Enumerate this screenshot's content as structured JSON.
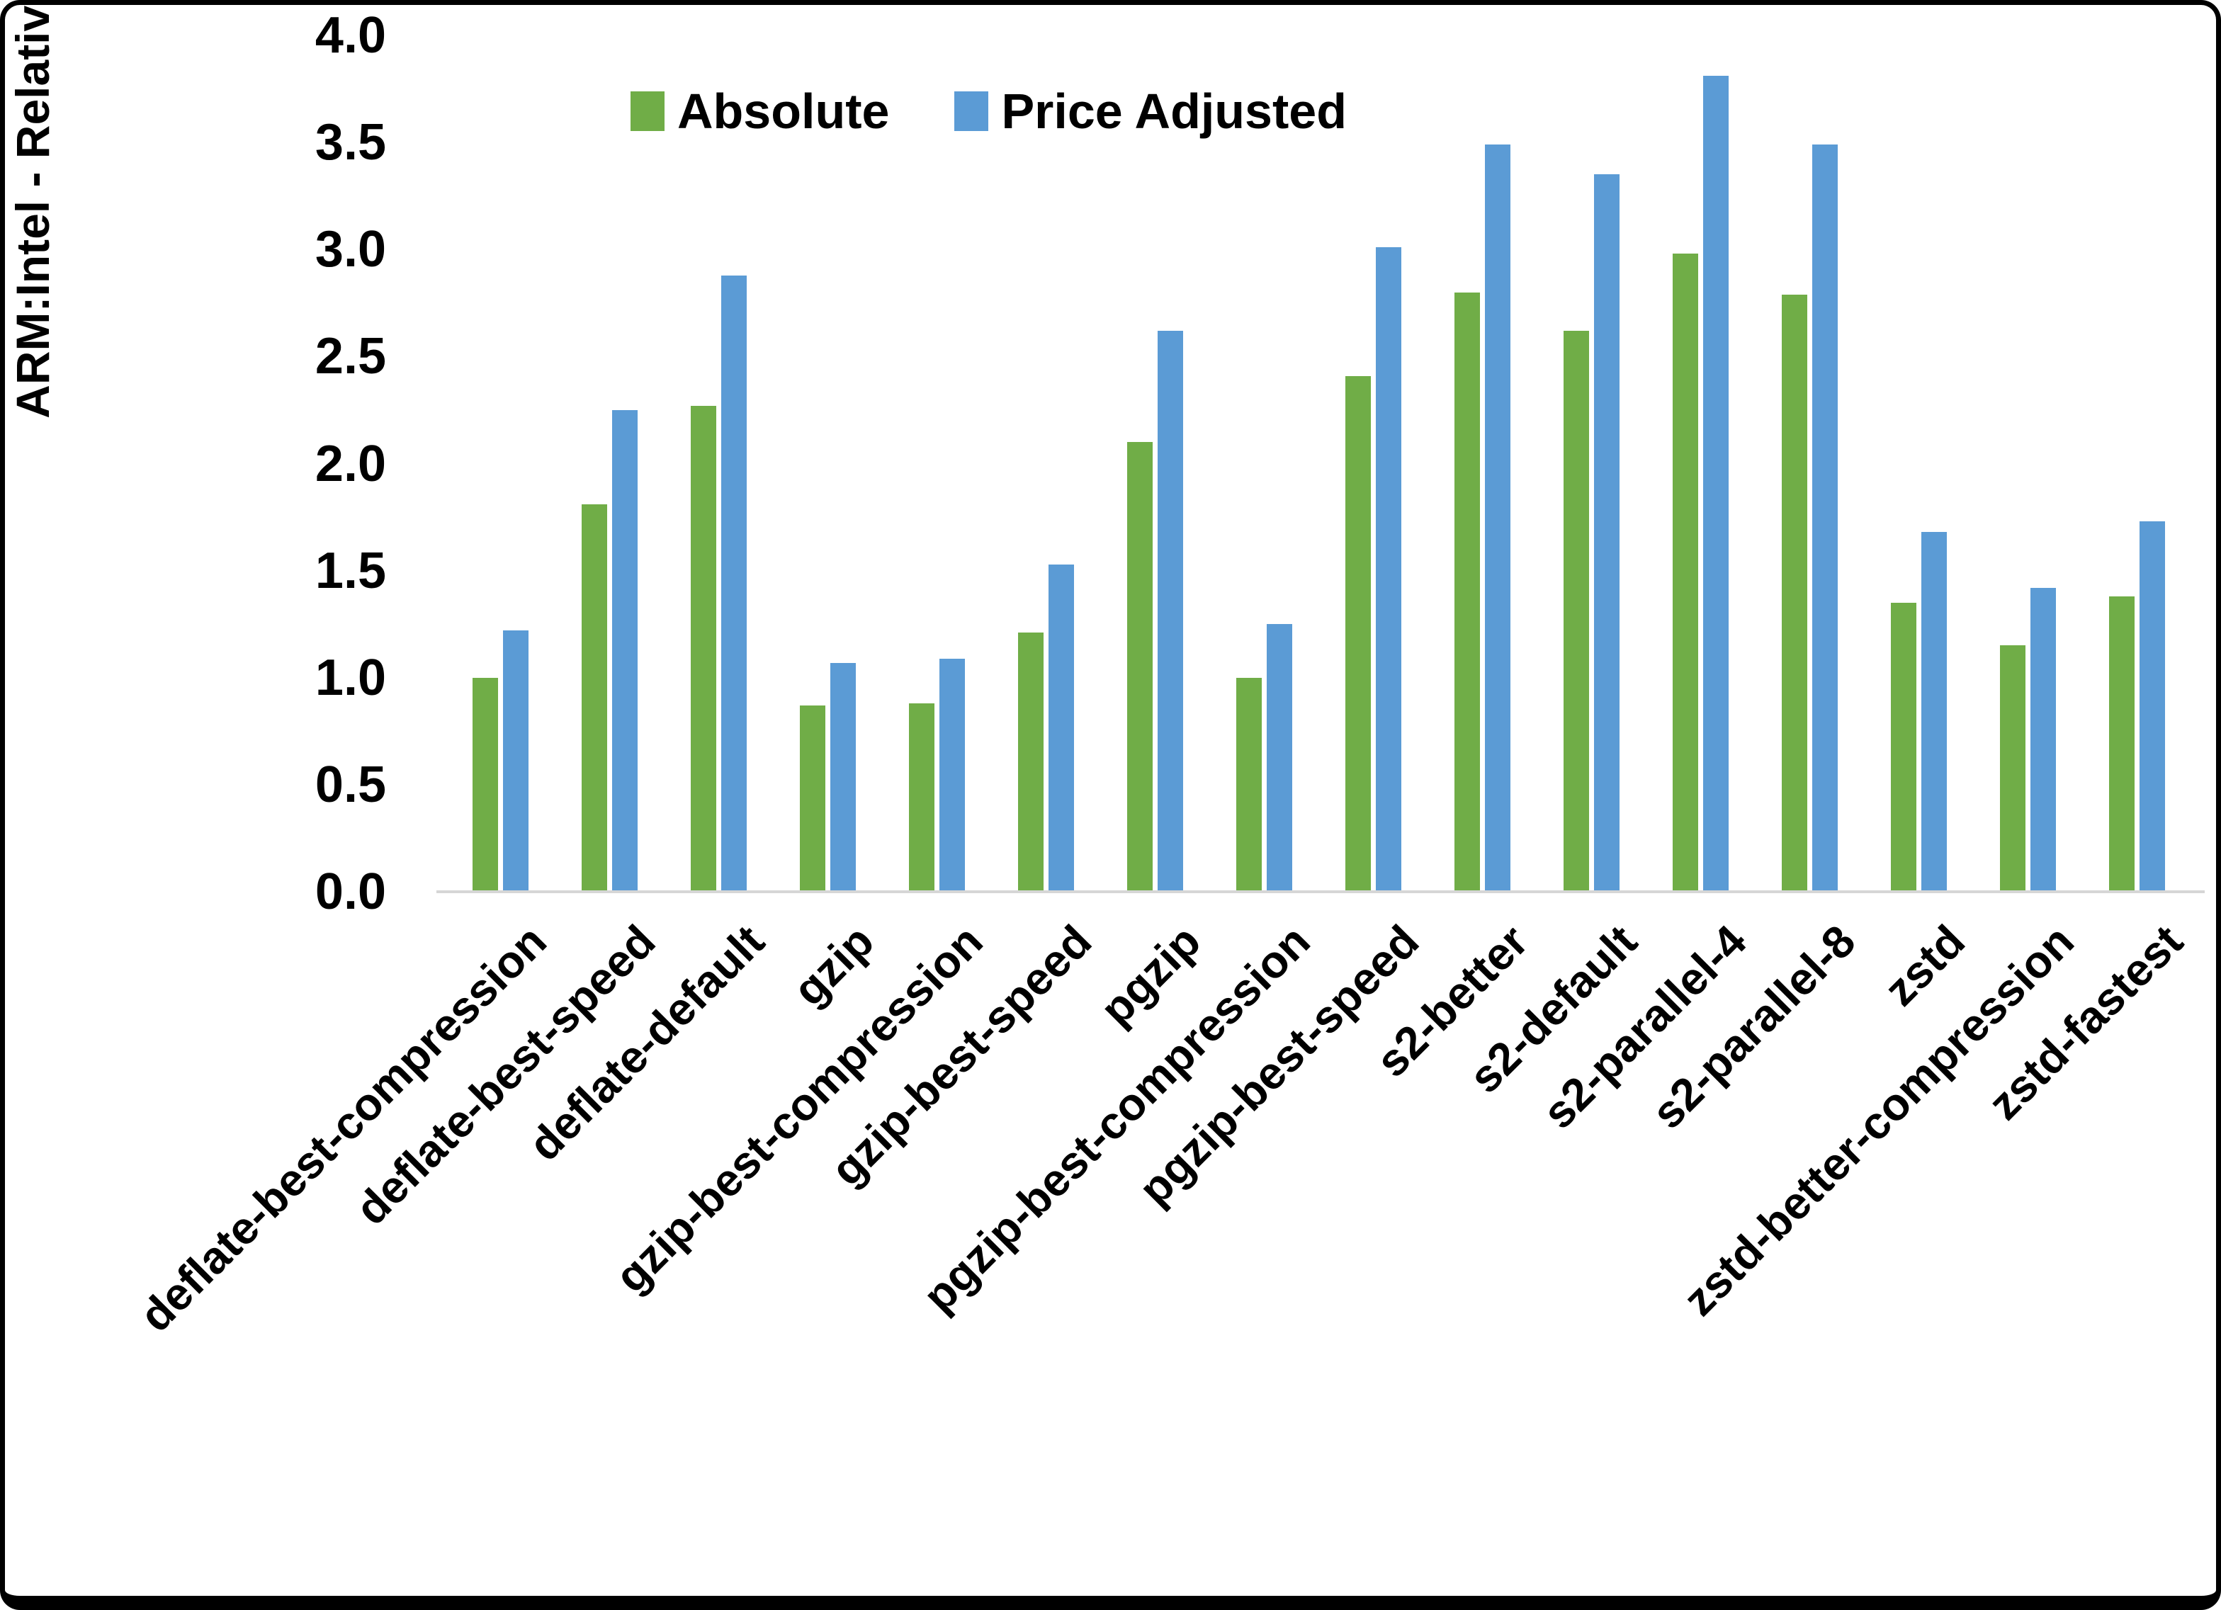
{
  "chart_data": {
    "type": "bar",
    "title": "",
    "ylabel": "ARM:Intel - Relative Performance",
    "xlabel": "",
    "ylim": [
      0.0,
      4.0
    ],
    "ytick_step": 0.5,
    "ytick_labels": [
      "4.0",
      "3.5",
      "3.0",
      "2.5",
      "2.0",
      "1.5",
      "1.0",
      "0.5",
      "0.0"
    ],
    "grid": false,
    "legend_position": "top-center",
    "categories": [
      "deflate-best-compression",
      "deflate-best-speed",
      "deflate-default",
      "gzip",
      "gzip-best-compression",
      "gzip-best-speed",
      "pgzip",
      "pgzip-best-compression",
      "pgzip-best-speed",
      "s2-better",
      "s2-default",
      "s2-parallel-4",
      "s2-parallel-8",
      "zstd",
      "zstd-better-compression",
      "zstd-fastest"
    ],
    "series": [
      {
        "name": "Absolute",
        "color": "#70AD47",
        "values": [
          1.0,
          1.81,
          2.27,
          0.87,
          0.88,
          1.21,
          2.1,
          1.0,
          2.41,
          2.8,
          2.62,
          2.98,
          2.79,
          1.35,
          1.15,
          1.38
        ]
      },
      {
        "name": "Price Adjusted",
        "color": "#5B9BD5",
        "values": [
          1.22,
          2.25,
          2.88,
          1.07,
          1.09,
          1.53,
          2.62,
          1.25,
          3.01,
          3.49,
          3.35,
          3.81,
          3.49,
          1.68,
          1.42,
          1.73
        ]
      }
    ]
  },
  "colors": {
    "axis_line": "#D6D6D6",
    "text": "#000000",
    "frame": "#000000",
    "background": "#FFFFFF"
  }
}
